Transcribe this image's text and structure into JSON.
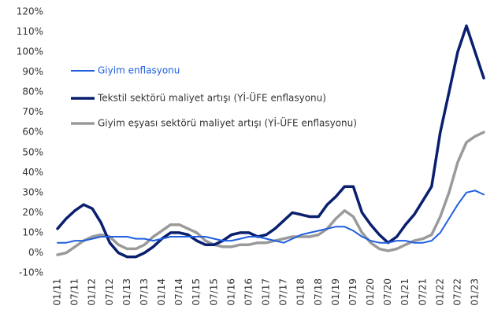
{
  "chart_data": {
    "type": "line",
    "categories": [
      "01/11",
      null,
      "07/11",
      null,
      "01/12",
      null,
      "07/12",
      null,
      "01/13",
      null,
      "07/13",
      null,
      "01/14",
      null,
      "07/14",
      null,
      "01/15",
      null,
      "07/15",
      null,
      "01/16",
      null,
      "07/16",
      null,
      "01/17",
      null,
      "07/17",
      null,
      "01/18",
      null,
      "07/18",
      null,
      "01/19",
      null,
      "07/19",
      null,
      "01/20",
      null,
      "07/20",
      null,
      "01/21",
      null,
      "07/21",
      null,
      "01/22",
      null,
      "07/22",
      null,
      "01/23",
      null
    ],
    "series": [
      {
        "name": "Giyim enflasyonu",
        "color": "#1f5fe0",
        "values": [
          5,
          5,
          6,
          6,
          7,
          8,
          8,
          8,
          8,
          7,
          7,
          6,
          7,
          8,
          8,
          8,
          8,
          8,
          7,
          6,
          6,
          7,
          8,
          8,
          7,
          6,
          5,
          7,
          9,
          10,
          11,
          12,
          13,
          13,
          11,
          8,
          6,
          5,
          5,
          6,
          6,
          5,
          5,
          6,
          10,
          17,
          24,
          30,
          31,
          29
        ]
      },
      {
        "name": "Tekstil sektörü maliyet artışı (Yİ-ÜFE enflasyonu)",
        "color": "#0a1f6e",
        "values": [
          12,
          17,
          21,
          24,
          22,
          15,
          5,
          0,
          -2,
          -2,
          0,
          3,
          7,
          10,
          10,
          9,
          6,
          4,
          4,
          6,
          9,
          10,
          10,
          8,
          9,
          12,
          16,
          20,
          19,
          18,
          18,
          24,
          28,
          33,
          33,
          20,
          14,
          9,
          5,
          8,
          14,
          19,
          26,
          33,
          60,
          80,
          100,
          113,
          100,
          87
        ]
      },
      {
        "name": "Giyim eşyası sektörü maliyet artışı (Yİ-ÜFE enflasyonu)",
        "color": "#9a9a9a",
        "values": [
          -1,
          0,
          3,
          6,
          8,
          9,
          8,
          4,
          2,
          2,
          4,
          8,
          11,
          14,
          14,
          12,
          10,
          6,
          4,
          3,
          3,
          4,
          4,
          5,
          5,
          6,
          7,
          8,
          8,
          8,
          9,
          12,
          17,
          21,
          18,
          10,
          5,
          2,
          1,
          2,
          4,
          6,
          7,
          9,
          18,
          30,
          45,
          55,
          58,
          60
        ]
      }
    ],
    "ylim": [
      -10,
      120
    ],
    "yticks": [
      {
        "value": -10,
        "label": "-10%"
      },
      {
        "value": 0,
        "label": "0%"
      },
      {
        "value": 10,
        "label": "10%"
      },
      {
        "value": 20,
        "label": "20%"
      },
      {
        "value": 30,
        "label": "30%"
      },
      {
        "value": 40,
        "label": "40%"
      },
      {
        "value": 50,
        "label": "50%"
      },
      {
        "value": 60,
        "label": "60%"
      },
      {
        "value": 70,
        "label": "70%"
      },
      {
        "value": 80,
        "label": "80%"
      },
      {
        "value": 90,
        "label": "90%"
      },
      {
        "value": 100,
        "label": "100%"
      },
      {
        "value": 110,
        "label": "110%"
      },
      {
        "value": 120,
        "label": "120%"
      }
    ],
    "grid": false,
    "legend": "upper left"
  }
}
